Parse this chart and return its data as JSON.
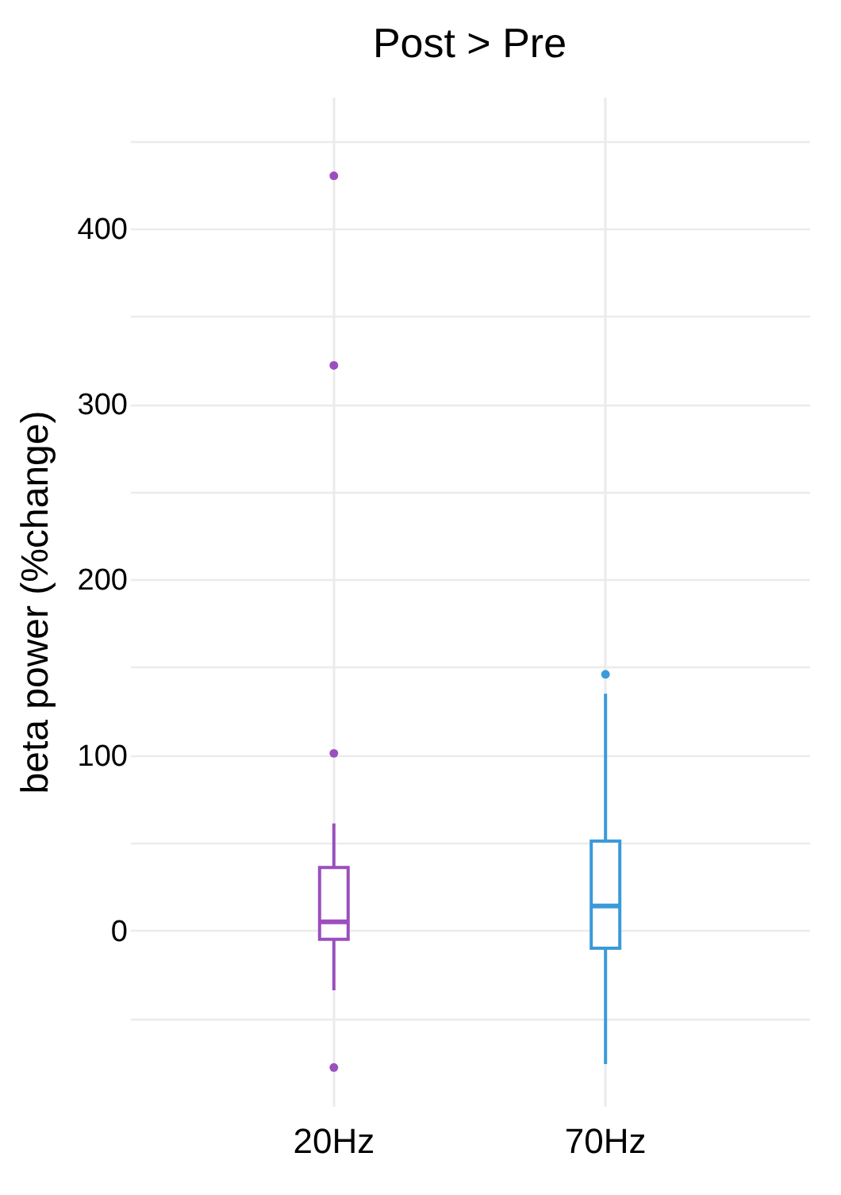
{
  "chart_data": {
    "type": "box",
    "title": "Post > Pre",
    "ylabel": "beta power (%change)",
    "categories": [
      "20Hz",
      "70Hz"
    ],
    "colors": [
      "#9b4fbf",
      "#3b9ad9"
    ],
    "boxes": [
      {
        "low": -34,
        "q1": -5,
        "median": 5,
        "q3": 36,
        "high": 61,
        "outliers": [
          101,
          322,
          430,
          -78
        ]
      },
      {
        "low": -76,
        "q1": -10,
        "median": 14,
        "q3": 51,
        "high": 135,
        "outliers": [
          146
        ]
      }
    ],
    "ylim": [
      -100,
      475
    ],
    "yticks": [
      {
        "value": -50,
        "label": null
      },
      0,
      {
        "value": 50,
        "label": null
      },
      100,
      {
        "value": 150,
        "label": null
      },
      200,
      {
        "value": 250,
        "label": null
      },
      300,
      {
        "value": 350,
        "label": null
      },
      400,
      {
        "value": 450,
        "label": null
      }
    ],
    "grid": true,
    "legend": false
  }
}
